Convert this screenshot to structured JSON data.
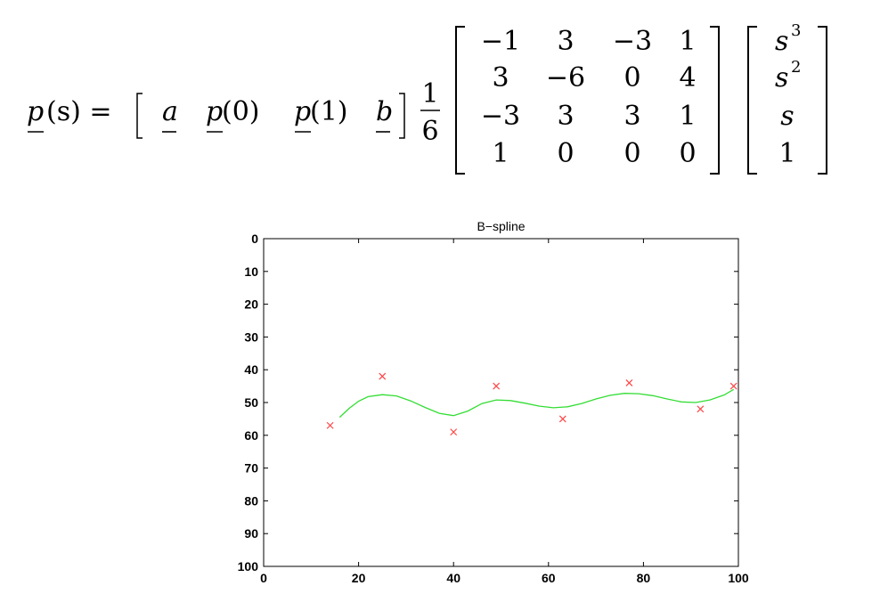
{
  "formula": {
    "lhs_p": "p",
    "lhs_arg": "(s) =",
    "row_vector": [
      {
        "sym": "a",
        "arg": ""
      },
      {
        "sym": "p",
        "arg": "(0)"
      },
      {
        "sym": "p",
        "arg": "(1)"
      },
      {
        "sym": "b",
        "arg": ""
      }
    ],
    "fraction": {
      "num": "1",
      "den": "6"
    },
    "matrix": [
      [
        "−1",
        "3",
        "−3",
        "1"
      ],
      [
        "3",
        "−6",
        "0",
        "4"
      ],
      [
        "−3",
        "3",
        "3",
        "1"
      ],
      [
        "1",
        "0",
        "0",
        "0"
      ]
    ],
    "column_vector": [
      {
        "base": "s",
        "exp": "3"
      },
      {
        "base": "s",
        "exp": "2"
      },
      {
        "base": "s",
        "exp": ""
      },
      {
        "base": "1",
        "exp": ""
      }
    ]
  },
  "chart_data": {
    "type": "line",
    "title": "B−spline",
    "xlabel": "",
    "ylabel": "",
    "xlim": [
      0,
      100
    ],
    "ylim": [
      0,
      100
    ],
    "y_reversed": true,
    "grid": false,
    "xticks": [
      0,
      20,
      40,
      60,
      80,
      100
    ],
    "yticks": [
      0,
      10,
      20,
      30,
      40,
      50,
      60,
      70,
      80,
      90,
      100
    ],
    "series": [
      {
        "kind": "markers",
        "marker": "x",
        "color": "#ff4444",
        "x": [
          14,
          25,
          40,
          49,
          63,
          77,
          92,
          99
        ],
        "y": [
          57,
          42,
          59,
          45,
          55,
          44,
          52,
          45
        ]
      },
      {
        "kind": "line",
        "color": "#33dd33",
        "x": [
          16,
          18,
          20,
          22,
          25,
          28,
          31,
          34,
          37,
          40,
          43,
          46,
          49,
          52,
          55,
          58,
          61,
          64,
          67,
          70,
          73,
          76,
          79,
          82,
          85,
          88,
          91,
          94,
          97,
          99
        ],
        "y": [
          54.5,
          51.8,
          49.6,
          48.2,
          47.6,
          48.0,
          49.5,
          51.5,
          53.3,
          54.0,
          52.6,
          50.3,
          49.2,
          49.4,
          50.2,
          51.1,
          51.6,
          51.3,
          50.3,
          48.9,
          47.8,
          47.2,
          47.3,
          47.9,
          48.9,
          49.8,
          50.0,
          49.2,
          47.7,
          46.0
        ]
      }
    ]
  }
}
